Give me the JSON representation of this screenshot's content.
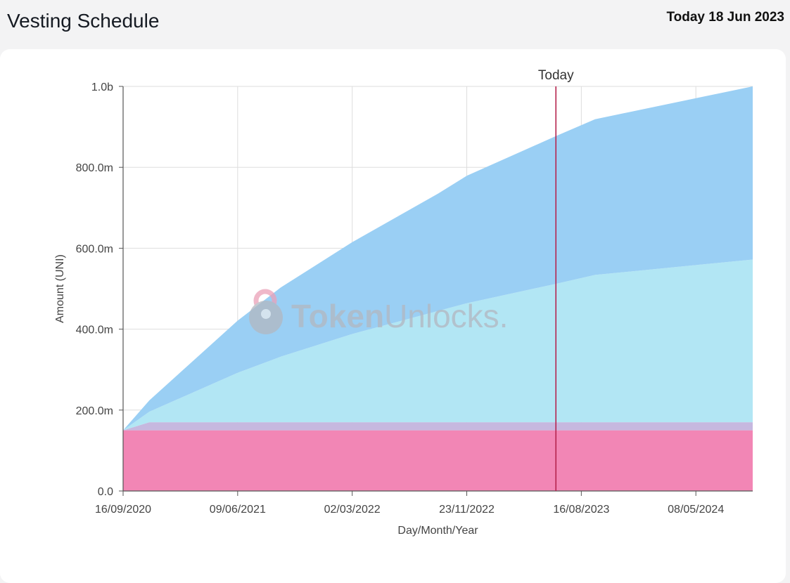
{
  "header": {
    "title": "Vesting Schedule",
    "today_label": "Today 18 Jun 2023"
  },
  "watermark": {
    "brand_bold": "Token",
    "brand_light": "Unlocks."
  },
  "chart_data": {
    "type": "area",
    "stacked": true,
    "title": "",
    "xlabel": "Day/Month/Year",
    "ylabel": "Amount (UNI)",
    "ylim": [
      0,
      1000000000
    ],
    "y_ticks": [
      {
        "value": 0,
        "label": "0.0"
      },
      {
        "value": 200000000,
        "label": "200.0m"
      },
      {
        "value": 400000000,
        "label": "400.0m"
      },
      {
        "value": 600000000,
        "label": "600.0m"
      },
      {
        "value": 800000000,
        "label": "800.0m"
      },
      {
        "value": 1000000000,
        "label": "1.0b"
      }
    ],
    "xlim": [
      "2020-09-16",
      "2024-09-17"
    ],
    "x_ticks": [
      {
        "date": "2020-09-16",
        "label": "16/09/2020"
      },
      {
        "date": "2021-06-09",
        "label": "09/06/2021"
      },
      {
        "date": "2022-03-02",
        "label": "02/03/2022"
      },
      {
        "date": "2022-11-23",
        "label": "23/11/2022"
      },
      {
        "date": "2023-08-16",
        "label": "16/08/2023"
      },
      {
        "date": "2024-05-08",
        "label": "08/05/2024"
      }
    ],
    "grid": true,
    "today_marker": {
      "date": "2023-06-18",
      "label": "Today",
      "color": "#b5254e"
    },
    "series": [
      {
        "color": "#f286b5",
        "points": [
          [
            "2020-09-16",
            150000000
          ],
          [
            "2024-09-17",
            150000000
          ]
        ]
      },
      {
        "color": "#c6b8df",
        "points": [
          [
            "2020-09-16",
            0
          ],
          [
            "2020-11-16",
            20000000
          ],
          [
            "2024-09-17",
            20000000
          ]
        ]
      },
      {
        "color": "#b2e6f4",
        "points": [
          [
            "2020-09-16",
            0
          ],
          [
            "2020-11-16",
            26000000
          ],
          [
            "2021-06-09",
            122000000
          ],
          [
            "2021-09-17",
            162000000
          ],
          [
            "2022-03-02",
            218000000
          ],
          [
            "2022-11-23",
            294000000
          ],
          [
            "2023-06-18",
            342000000
          ],
          [
            "2023-09-17",
            364000000
          ],
          [
            "2024-09-17",
            402000000
          ]
        ]
      },
      {
        "color": "#9acff4",
        "points": [
          [
            "2020-09-16",
            0
          ],
          [
            "2020-11-16",
            28000000
          ],
          [
            "2021-06-09",
            129000000
          ],
          [
            "2021-09-17",
            171000000
          ],
          [
            "2022-03-02",
            227000000
          ],
          [
            "2022-09-17",
            290000000
          ],
          [
            "2022-11-23",
            315000000
          ],
          [
            "2023-06-18",
            365000000
          ],
          [
            "2023-09-17",
            385000000
          ],
          [
            "2024-09-17",
            428000000
          ]
        ]
      }
    ]
  },
  "colors": {
    "grid": "#dddddd",
    "axis": "#555555",
    "today_line": "#b5254e",
    "watermark_pink": "#eaa1b8",
    "watermark_gray": "#b3b7c0"
  }
}
